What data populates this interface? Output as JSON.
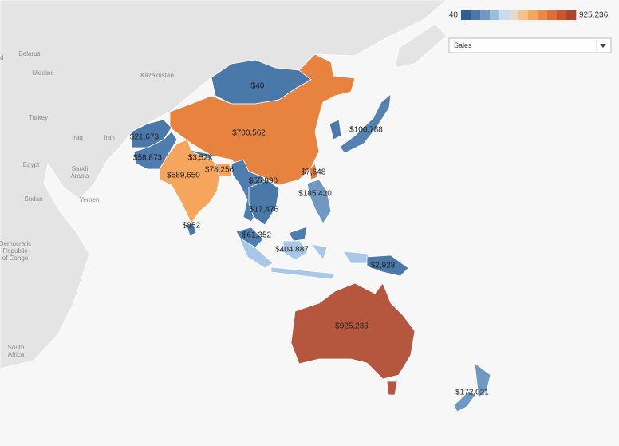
{
  "legend": {
    "min_label": "40",
    "max_label": "925,236",
    "colors": [
      "#2c5f94",
      "#4a78a9",
      "#6f98c3",
      "#9bbddc",
      "#c9dced",
      "#e2dcd0",
      "#f9c189",
      "#f5a55c",
      "#ec8a43",
      "#de6f33",
      "#c9562d",
      "#b0432a"
    ]
  },
  "filter": {
    "label": "Sales"
  },
  "place_names": [
    [
      "Poland"
    ],
    [
      "Belarus"
    ],
    [
      "Ukraine"
    ],
    [
      "Kazakhstan"
    ],
    [
      "Turkey"
    ],
    [
      "Iraq"
    ],
    [
      "Iran"
    ],
    [
      "Egypt"
    ],
    [
      "Saudi",
      "Arabia"
    ],
    [
      "Yemen"
    ],
    [
      "Sudan"
    ],
    [
      "Democratic",
      "Republic",
      "of Congo"
    ],
    [
      "South",
      "Africa"
    ]
  ],
  "regions": [
    {
      "label": "$40",
      "value": 40,
      "color": "#4a78a9"
    },
    {
      "label": "$700,562",
      "value": 700562,
      "color": "#e8823f"
    },
    {
      "label": "$100,788",
      "value": 100788,
      "color": "#5582b1"
    },
    {
      "label": "$21,673",
      "value": 21673,
      "color": "#4a78a9"
    },
    {
      "label": "$58,873",
      "value": 58873,
      "color": "#4f7dad"
    },
    {
      "label": "$3,522",
      "value": 3522,
      "color": "#4a78a9"
    },
    {
      "label": "$78,256",
      "value": 78256,
      "color": "#f6a45c"
    },
    {
      "label": "$589,650",
      "value": 589650,
      "color": "#f5a55c"
    },
    {
      "label": "$55,890",
      "value": 55890,
      "color": "#4f7dad"
    },
    {
      "label": "$7,648",
      "value": 7648,
      "color": "#e07b3c"
    },
    {
      "label": "$185,420",
      "value": 185420,
      "color": "#6f98c3"
    },
    {
      "label": "$17,476",
      "value": 17476,
      "color": "#4a78a9"
    },
    {
      "label": "$852",
      "value": 852,
      "color": "#4a78a9"
    },
    {
      "label": "$61,352",
      "value": 61352,
      "color": "#4f7dad"
    },
    {
      "label": "$404,887",
      "value": 404887,
      "color": "#a7c8e6"
    },
    {
      "label": "$2,928",
      "value": 2928,
      "color": "#4a78a9"
    },
    {
      "label": "$925,236",
      "value": 925236,
      "color": "#b5573e"
    },
    {
      "label": "$172,021",
      "value": 172021,
      "color": "#6f98c3"
    }
  ]
}
